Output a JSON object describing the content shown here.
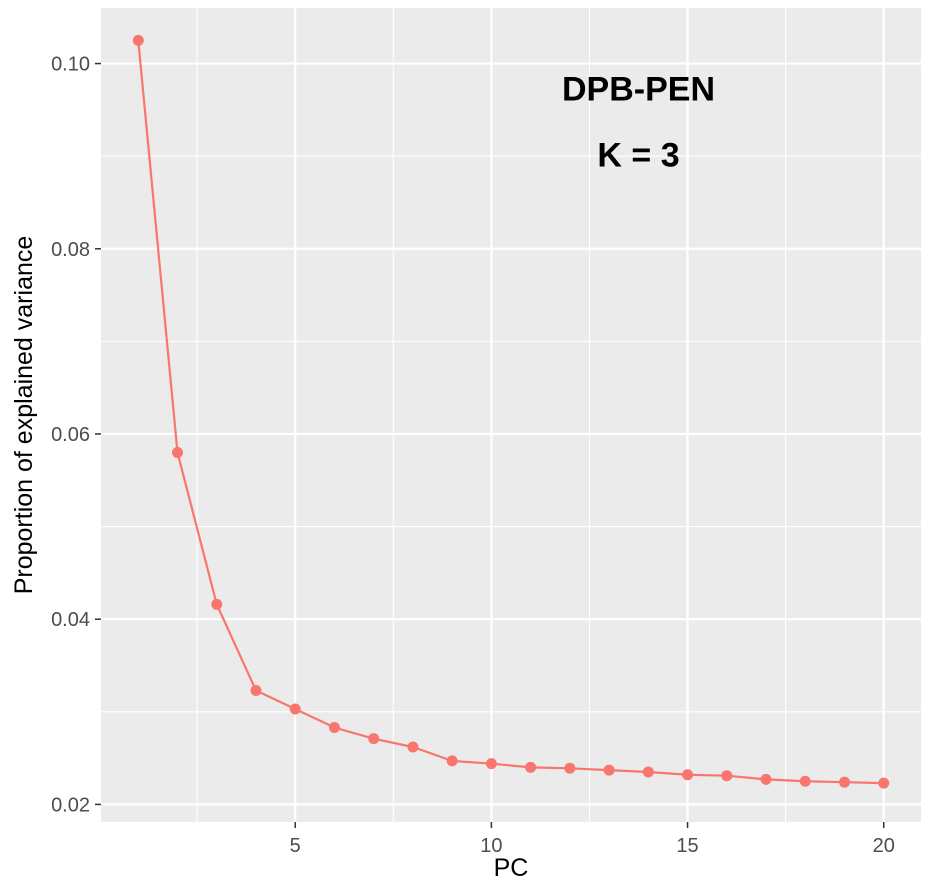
{
  "chart_data": {
    "type": "line",
    "title": "",
    "xlabel": "PC",
    "ylabel": "Proportion of explained variance",
    "xlim": [
      0.05,
      20.95
    ],
    "ylim": [
      0.0181,
      0.106
    ],
    "x_ticks": [
      5,
      10,
      15,
      20
    ],
    "x_minor_ticks": [
      2.5,
      7.5,
      12.5,
      17.5
    ],
    "y_ticks": [
      0.02,
      0.04,
      0.06,
      0.08,
      0.1
    ],
    "y_tick_labels": [
      "0.02",
      "0.04",
      "0.06",
      "0.08",
      "0.10"
    ],
    "y_minor_ticks": [
      0.03,
      0.05,
      0.07,
      0.09
    ],
    "grid": true,
    "annotations": [
      "DPB-PEN",
      "K = 3"
    ],
    "colors": {
      "series": "#f8766d",
      "panel_background": "#ebebeb",
      "grid": "#ffffff"
    },
    "series": [
      {
        "x": [
          1,
          2,
          3,
          4,
          5,
          6,
          7,
          8,
          9,
          10,
          11,
          12,
          13,
          14,
          15,
          16,
          17,
          18,
          19,
          20
        ],
        "values": [
          0.1025,
          0.058,
          0.0416,
          0.0323,
          0.0303,
          0.0283,
          0.0271,
          0.0262,
          0.0247,
          0.0244,
          0.024,
          0.0239,
          0.0237,
          0.0235,
          0.0232,
          0.0231,
          0.0227,
          0.0225,
          0.0224,
          0.0223
        ]
      }
    ]
  }
}
